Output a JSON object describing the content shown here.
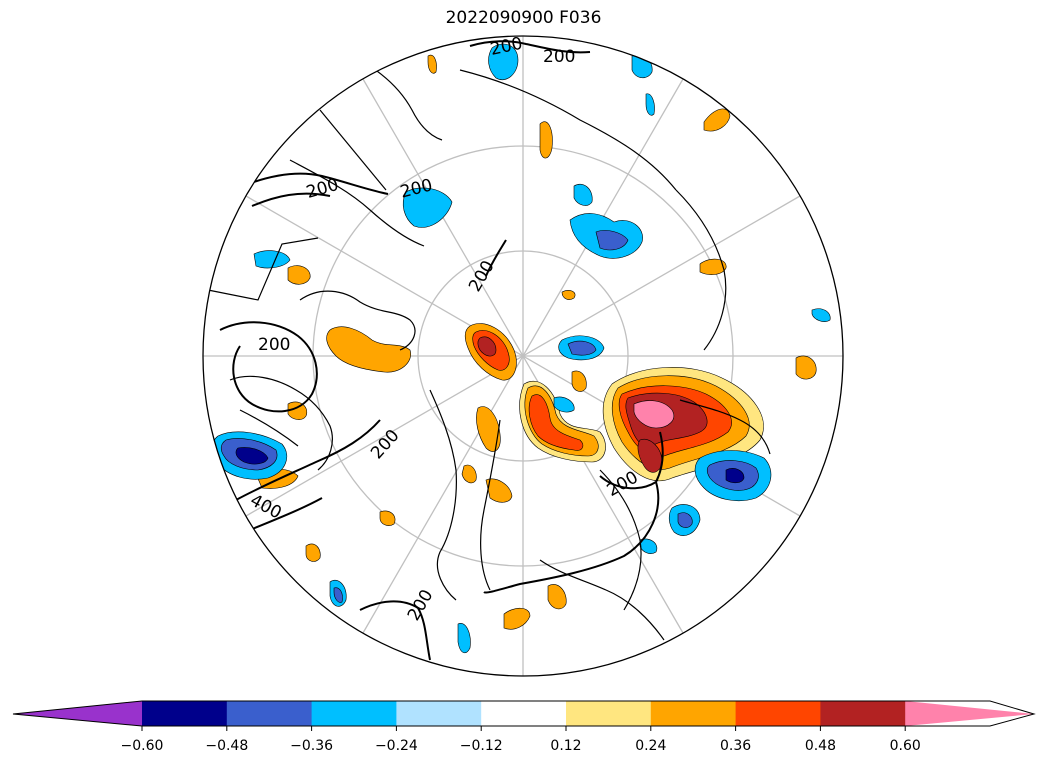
{
  "title": "2022090900 F036",
  "colorbar": {
    "extend": "both",
    "colors": [
      "#9932cc",
      "#00008b",
      "#3a5fcd",
      "#00bfff",
      "#b0e2ff",
      "#ffffff",
      "#ffe680",
      "#ffa500",
      "#ff4500",
      "#b22222",
      "#ff82ab"
    ],
    "ticks": [
      "−0.60",
      "−0.48",
      "−0.36",
      "−0.24",
      "−0.12",
      "0.12",
      "0.24",
      "0.36",
      "0.48",
      "0.60"
    ]
  },
  "contour_labels": [
    "200",
    "200",
    "200",
    "200",
    "200",
    "200",
    "200",
    "200",
    "400",
    "200"
  ],
  "map": {
    "projection": "north-polar-stereographic",
    "graticule_color": "#c0c0c0",
    "coastline_color": "#000000"
  }
}
